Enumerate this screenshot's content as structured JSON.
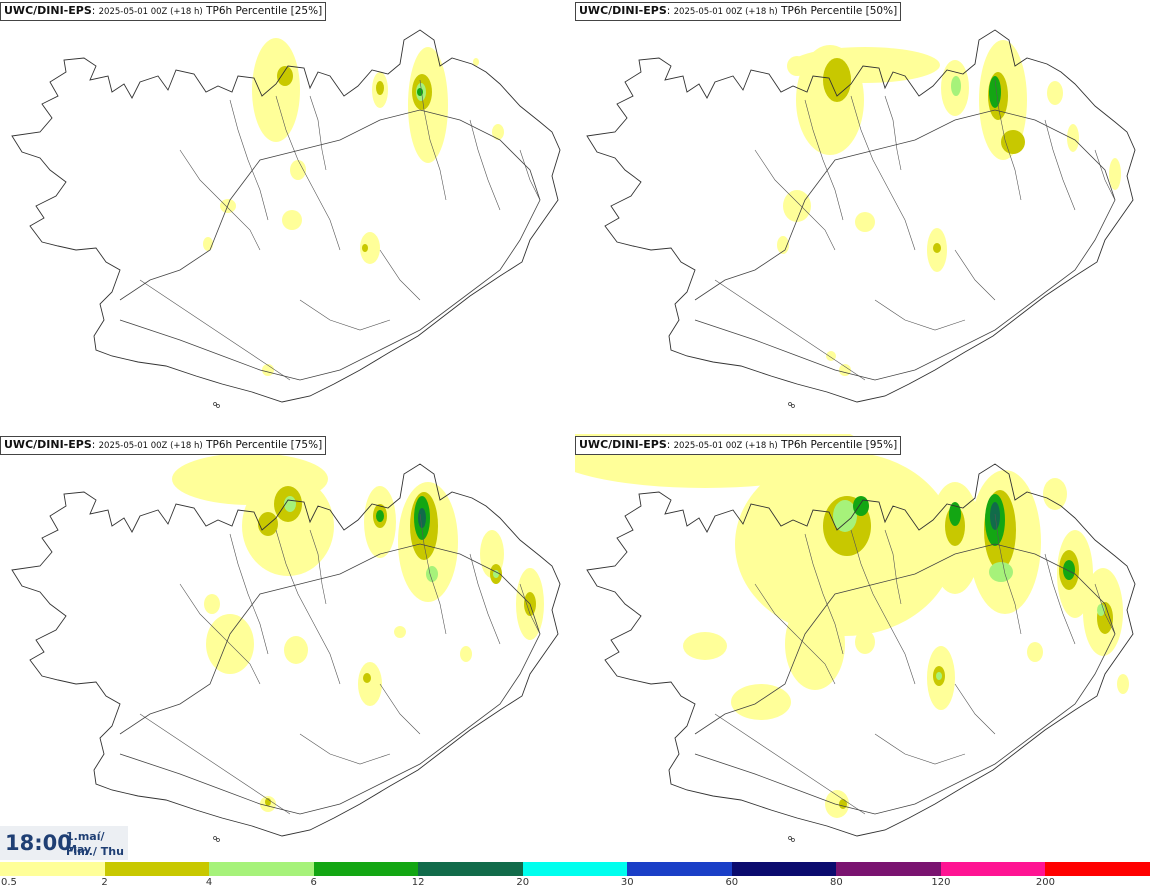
{
  "panels": [
    {
      "model": "UWC/DINI-EPS",
      "run": "2025-05-01 00Z (+18 h)",
      "field": "TP6h Percentile [25%]"
    },
    {
      "model": "UWC/DINI-EPS",
      "run": "2025-05-01 00Z (+18 h)",
      "field": "TP6h Percentile [50%]"
    },
    {
      "model": "UWC/DINI-EPS",
      "run": "2025-05-01 00Z (+18 h)",
      "field": "TP6h Percentile [75%]"
    },
    {
      "model": "UWC/DINI-EPS",
      "run": "2025-05-01 00Z (+18 h)",
      "field": "TP6h Percentile [95%]"
    }
  ],
  "time": {
    "clock": "18:00",
    "date_line1": "1.maí/ May",
    "date_line2": "Fim./ Thu"
  },
  "legend": {
    "colors": [
      "#ffff99",
      "#c8c800",
      "#a6f27a",
      "#13a613",
      "#116b4a",
      "#00ffee",
      "#1a3fc7",
      "#0b0b6e",
      "#7a1370",
      "#ff1493",
      "#ff0000"
    ],
    "labels": [
      "0.5",
      "2",
      "4",
      "6",
      "12",
      "20",
      "30",
      "60",
      "80",
      "120",
      "200"
    ]
  }
}
